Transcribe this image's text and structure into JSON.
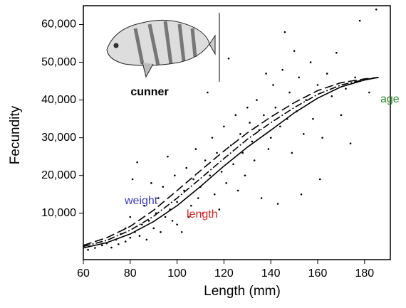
{
  "chart_data": {
    "type": "scatter",
    "x_label": "Length (mm)",
    "y_label": "Fecundity",
    "inset_label": "cunner",
    "xlim": [
      60,
      191
    ],
    "ylim": [
      -2300,
      65000
    ],
    "xticks": [
      60,
      80,
      100,
      120,
      140,
      160,
      180
    ],
    "yticks": [
      {
        "value": 10000,
        "label": "10,000"
      },
      {
        "value": 20000,
        "label": "20,000"
      },
      {
        "value": 30000,
        "label": "30,000"
      },
      {
        "value": 40000,
        "label": "40,000"
      },
      {
        "value": 50000,
        "label": "50,000"
      },
      {
        "value": 60000,
        "label": "60,000"
      }
    ],
    "points": {
      "color": "#000000",
      "x": [
        62,
        65,
        68,
        70,
        72,
        74,
        75,
        76,
        78,
        78,
        80,
        80,
        81,
        82,
        83,
        84,
        85,
        86,
        87,
        88,
        89,
        90,
        91,
        92,
        93,
        94,
        95,
        96,
        97,
        98,
        99,
        100,
        100,
        102,
        103,
        104,
        105,
        106,
        107,
        108,
        109,
        110,
        111,
        112,
        113,
        114,
        115,
        116,
        117,
        118,
        119,
        120,
        121,
        122,
        123,
        124,
        125,
        126,
        127,
        128,
        129,
        130,
        131,
        132,
        133,
        134,
        135,
        136,
        137,
        138,
        139,
        140,
        141,
        142,
        143,
        144,
        145,
        146,
        147,
        148,
        149,
        150,
        151,
        152,
        153,
        154,
        155,
        157,
        158,
        160,
        161,
        162,
        164,
        166,
        168,
        170,
        172,
        174,
        176,
        178,
        182,
        185
      ],
      "y": [
        300,
        800,
        1500,
        2000,
        900,
        3000,
        1800,
        4500,
        2500,
        6000,
        3500,
        9000,
        19000,
        5000,
        23500,
        4000,
        7000,
        12000,
        3000,
        8000,
        18000,
        6000,
        10000,
        14000,
        5000,
        17000,
        9000,
        25000,
        11000,
        8000,
        20000,
        13000,
        7000,
        5000,
        16000,
        22000,
        9000,
        12000,
        19000,
        27000,
        14000,
        17000,
        10000,
        24000,
        42000,
        20000,
        30000,
        15000,
        26000,
        11000,
        21000,
        33000,
        18000,
        51000,
        28000,
        23000,
        36000,
        16000,
        31000,
        26000,
        20000,
        38000,
        34000,
        29000,
        24000,
        40000,
        32000,
        14000,
        36000,
        47000,
        27000,
        30000,
        44000,
        38000,
        12500,
        33000,
        48000,
        58000,
        35000,
        42000,
        26000,
        53000,
        37000,
        46000,
        15000,
        31000,
        40000,
        50000,
        35000,
        44000,
        19000,
        30000,
        47000,
        41000,
        52500,
        36000,
        43000,
        28500,
        46000,
        61000,
        42000,
        64000
      ]
    },
    "series": [
      {
        "name": "weight",
        "color": "#000000",
        "label_color": "#3a3ac8",
        "dash": "10 3 2 3",
        "x": [
          60,
          70,
          80,
          90,
          100,
          110,
          120,
          130,
          140,
          150,
          160,
          170,
          180,
          186
        ],
        "y": [
          1200,
          2800,
          5500,
          9200,
          14000,
          19200,
          24500,
          29600,
          34000,
          38000,
          41500,
          44000,
          45400,
          46000
        ]
      },
      {
        "name": "length",
        "color": "#000000",
        "label_color": "#e02020",
        "dash": "",
        "x": [
          60,
          70,
          80,
          90,
          100,
          110,
          120,
          130,
          140,
          150,
          160,
          170,
          180,
          186
        ],
        "y": [
          800,
          2200,
          4500,
          7800,
          12000,
          17100,
          22500,
          27500,
          32000,
          36600,
          40500,
          43500,
          45300,
          46000
        ]
      },
      {
        "name": "age",
        "color": "#000000",
        "label_color": "#2a8a2a",
        "dash": "12 5",
        "x": [
          60,
          70,
          80,
          90,
          100,
          110,
          120,
          130,
          140,
          150,
          160,
          170,
          180,
          186
        ],
        "y": [
          1500,
          3500,
          6500,
          10800,
          16000,
          21300,
          26500,
          31300,
          35500,
          39300,
          42500,
          44600,
          45600,
          46000
        ]
      }
    ]
  }
}
